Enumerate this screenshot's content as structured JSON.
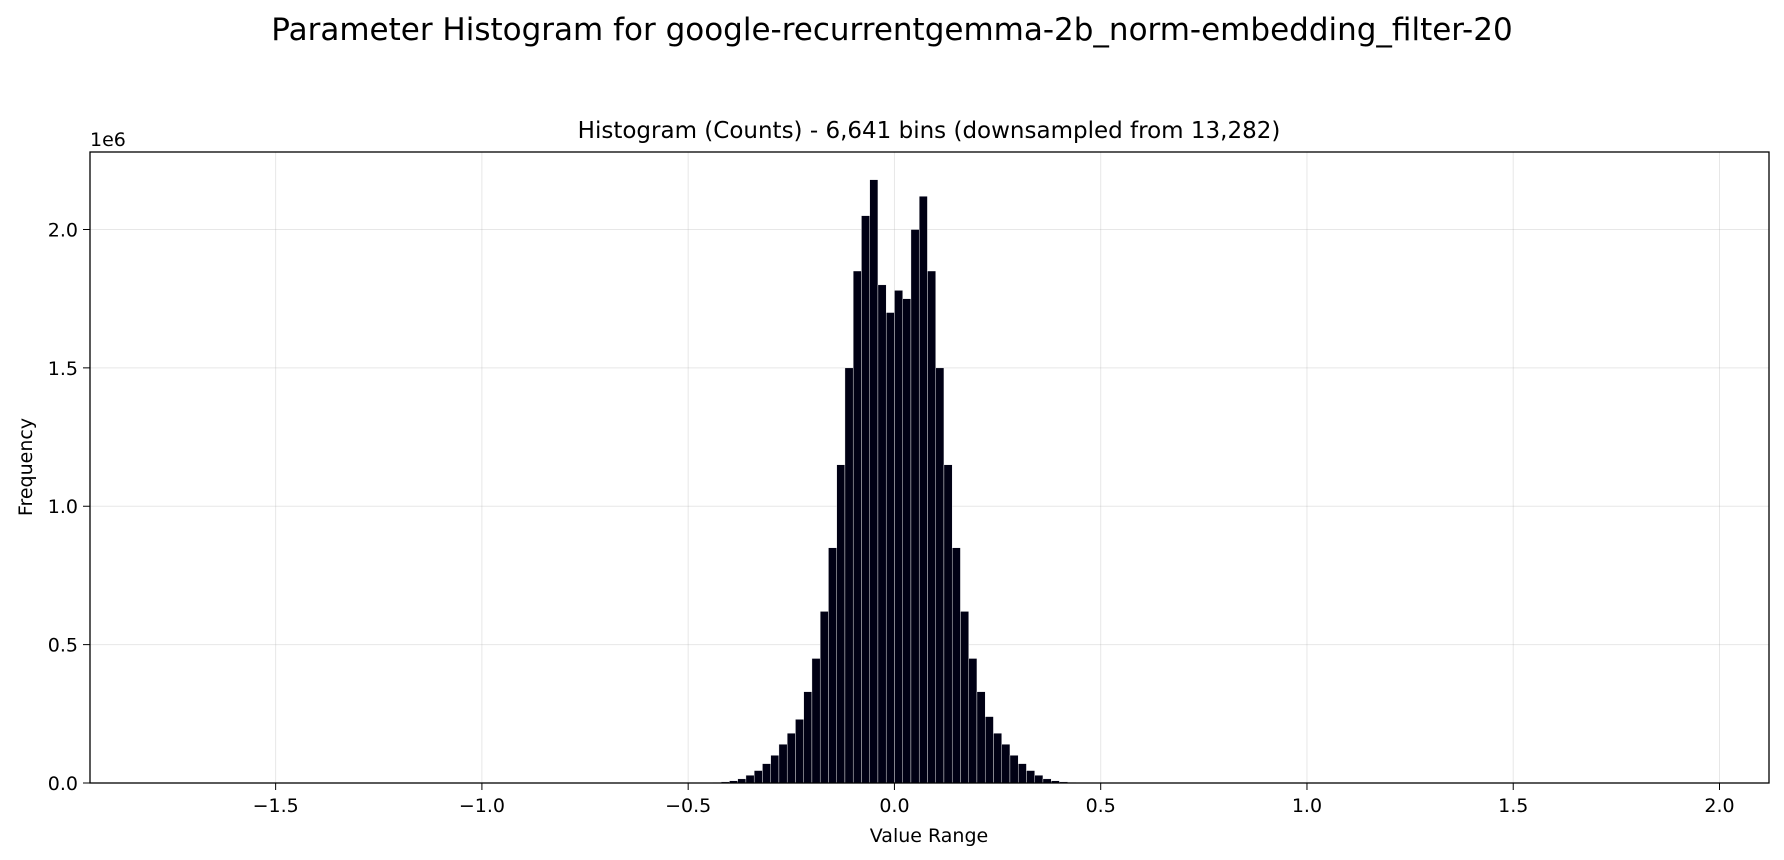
{
  "figure": {
    "suptitle": "Parameter Histogram for google-recurrentgemma-2b_norm-embedding_filter-20"
  },
  "chart_data": {
    "type": "bar",
    "title": "Histogram (Counts) - 6,641 bins (downsampled from 13,282)",
    "xlabel": "Value Range",
    "ylabel": "Frequency",
    "y_offset_label": "1e6",
    "xlim": [
      -1.95,
      2.12
    ],
    "ylim": [
      0,
      2.28
    ],
    "y_scale_multiplier": 1000000,
    "grid": true,
    "bar_color": "#000014",
    "bar_edge_color": "#ffffff",
    "x_ticks": [
      {
        "value": -1.5,
        "label": "−1.5"
      },
      {
        "value": -1.0,
        "label": "−1.0"
      },
      {
        "value": -0.5,
        "label": "−0.5"
      },
      {
        "value": 0.0,
        "label": "0.0"
      },
      {
        "value": 0.5,
        "label": "0.5"
      },
      {
        "value": 1.0,
        "label": "1.0"
      },
      {
        "value": 1.5,
        "label": "1.5"
      },
      {
        "value": 2.0,
        "label": "2.0"
      }
    ],
    "y_ticks": [
      {
        "value": 0.0,
        "label": "0.0"
      },
      {
        "value": 0.5,
        "label": "0.5"
      },
      {
        "value": 1.0,
        "label": "1.0"
      },
      {
        "value": 1.5,
        "label": "1.5"
      },
      {
        "value": 2.0,
        "label": "2.0"
      }
    ],
    "x": [
      -0.45,
      -0.43,
      -0.41,
      -0.39,
      -0.37,
      -0.35,
      -0.33,
      -0.31,
      -0.29,
      -0.27,
      -0.25,
      -0.23,
      -0.21,
      -0.19,
      -0.17,
      -0.15,
      -0.13,
      -0.11,
      -0.09,
      -0.07,
      -0.05,
      -0.03,
      -0.01,
      0.01,
      0.03,
      0.05,
      0.07,
      0.09,
      0.11,
      0.13,
      0.15,
      0.17,
      0.19,
      0.21,
      0.23,
      0.25,
      0.27,
      0.29,
      0.31,
      0.33,
      0.35,
      0.37,
      0.39,
      0.41,
      0.43,
      0.45
    ],
    "values": [
      0.001,
      0.002,
      0.004,
      0.008,
      0.015,
      0.028,
      0.045,
      0.07,
      0.1,
      0.14,
      0.18,
      0.23,
      0.33,
      0.45,
      0.62,
      0.85,
      1.15,
      1.5,
      1.85,
      2.05,
      2.18,
      1.8,
      1.7,
      1.78,
      1.75,
      2.0,
      2.12,
      1.85,
      1.5,
      1.15,
      0.85,
      0.62,
      0.45,
      0.33,
      0.24,
      0.18,
      0.14,
      0.1,
      0.07,
      0.045,
      0.028,
      0.015,
      0.008,
      0.004,
      0.002,
      0.001
    ]
  }
}
